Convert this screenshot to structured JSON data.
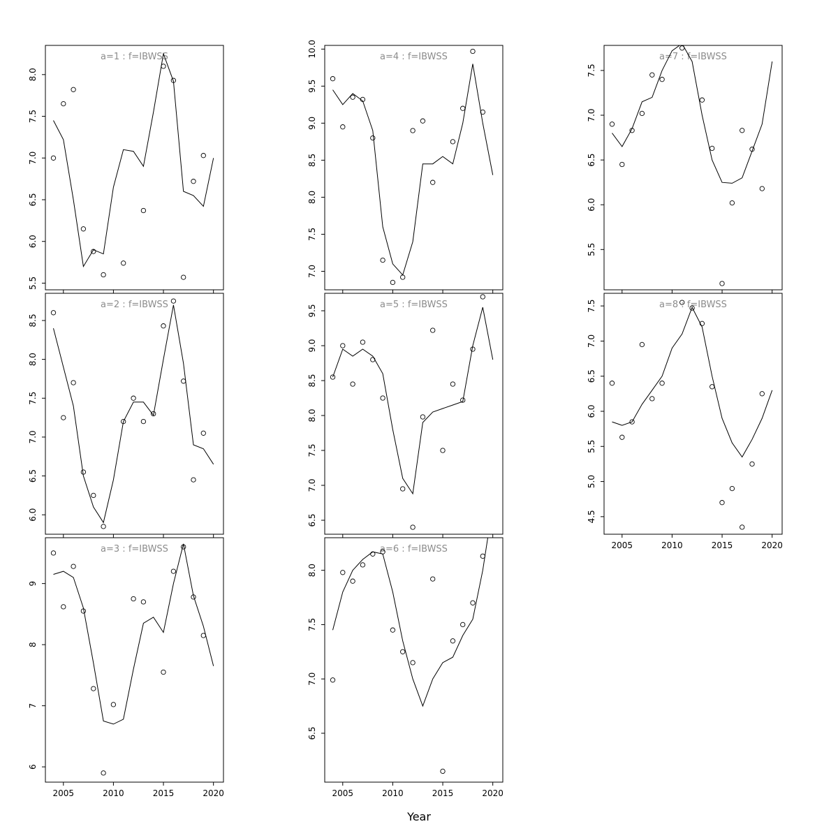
{
  "figure_title": "",
  "colors": {
    "line": "#000000",
    "point": "#000000",
    "panel_title": "#8c8c8c",
    "box": "#000000",
    "tick_text": "#000000"
  },
  "chart_data": {
    "type": "line",
    "subtype": "small-multiples scatter with fitted line",
    "xlabel": "Year",
    "x": [
      2004,
      2005,
      2006,
      2007,
      2008,
      2009,
      2010,
      2011,
      2012,
      2013,
      2014,
      2015,
      2016,
      2017,
      2018,
      2019,
      2020
    ],
    "xticks": [
      2005,
      2010,
      2015,
      2020
    ],
    "xlim": [
      2003.2,
      2021.0
    ],
    "grid": false,
    "legend": "none",
    "panels": [
      {
        "id": "a1",
        "title": "a=1  :  f=IBWSS",
        "row": 0,
        "col": 0,
        "ylim": [
          5.42,
          8.35
        ],
        "yticks": [
          5.5,
          6.0,
          6.5,
          7.0,
          7.5,
          8.0
        ],
        "show_xticklabels": false,
        "points": [
          7.0,
          7.65,
          7.82,
          6.15,
          5.88,
          5.6,
          null,
          5.74,
          null,
          6.37,
          null,
          8.1,
          7.93,
          5.57,
          6.72,
          7.03,
          null
        ],
        "line": [
          7.45,
          7.22,
          6.5,
          5.7,
          5.9,
          5.85,
          6.65,
          7.1,
          7.08,
          6.9,
          7.55,
          8.25,
          7.92,
          6.6,
          6.55,
          6.42,
          7.0
        ]
      },
      {
        "id": "a2",
        "title": "a=2  :  f=IBWSS",
        "row": 1,
        "col": 0,
        "ylim": [
          5.75,
          8.85
        ],
        "yticks": [
          6.0,
          6.5,
          7.0,
          7.5,
          8.0,
          8.5
        ],
        "show_xticklabels": false,
        "points": [
          8.6,
          7.25,
          7.7,
          6.55,
          6.25,
          5.85,
          null,
          7.2,
          7.5,
          7.2,
          7.3,
          8.43,
          8.75,
          7.72,
          6.45,
          7.05,
          null
        ],
        "line": [
          8.4,
          7.9,
          7.4,
          6.5,
          6.1,
          5.9,
          6.45,
          7.2,
          7.45,
          7.45,
          7.28,
          8.0,
          8.7,
          7.95,
          6.9,
          6.85,
          6.65
        ]
      },
      {
        "id": "a3",
        "title": "a=3  :  f=IBWSS",
        "row": 2,
        "col": 0,
        "ylim": [
          5.75,
          9.75
        ],
        "yticks": [
          6,
          7,
          8,
          9
        ],
        "show_xticklabels": true,
        "points": [
          9.5,
          8.62,
          9.28,
          8.55,
          7.28,
          5.9,
          7.02,
          null,
          8.75,
          8.7,
          null,
          7.55,
          9.2,
          9.6,
          8.78,
          8.15,
          null
        ],
        "line": [
          9.15,
          9.2,
          9.1,
          8.6,
          7.7,
          6.75,
          6.7,
          6.78,
          7.6,
          8.35,
          8.45,
          8.2,
          9.0,
          9.65,
          8.8,
          8.3,
          7.65
        ]
      },
      {
        "id": "a4",
        "title": "a=4  :  f=IBWSS",
        "row": 0,
        "col": 1,
        "ylim": [
          6.75,
          10.05
        ],
        "yticks": [
          7.0,
          7.5,
          8.0,
          8.5,
          9.0,
          9.5,
          10.0
        ],
        "show_xticklabels": false,
        "points": [
          9.6,
          8.95,
          9.35,
          9.32,
          8.8,
          7.15,
          6.85,
          6.92,
          8.9,
          9.03,
          8.2,
          null,
          8.75,
          9.2,
          9.97,
          9.15,
          null
        ],
        "line": [
          9.45,
          9.25,
          9.4,
          9.3,
          8.9,
          7.6,
          7.1,
          6.95,
          7.4,
          8.45,
          8.45,
          8.55,
          8.45,
          9.0,
          9.8,
          9.0,
          8.3
        ]
      },
      {
        "id": "a5",
        "title": "a=5  :  f=IBWSS",
        "row": 1,
        "col": 1,
        "ylim": [
          6.3,
          9.75
        ],
        "yticks": [
          6.5,
          7.0,
          7.5,
          8.0,
          8.5,
          9.0,
          9.5
        ],
        "show_xticklabels": false,
        "points": [
          8.55,
          9.0,
          8.45,
          9.05,
          8.8,
          8.25,
          null,
          6.95,
          6.4,
          7.98,
          9.22,
          7.5,
          8.45,
          8.22,
          8.95,
          9.7,
          null
        ],
        "line": [
          8.55,
          8.95,
          8.85,
          8.95,
          8.85,
          8.6,
          7.8,
          7.1,
          6.88,
          7.9,
          8.05,
          8.1,
          8.15,
          8.2,
          9.0,
          9.55,
          8.8
        ]
      },
      {
        "id": "a6",
        "title": "a=6  :  f=IBWSS",
        "row": 2,
        "col": 1,
        "ylim": [
          6.05,
          8.3
        ],
        "yticks": [
          6.5,
          7.0,
          7.5,
          8.0
        ],
        "show_xticklabels": true,
        "points": [
          6.99,
          7.98,
          7.9,
          8.05,
          8.15,
          8.17,
          7.45,
          7.25,
          7.15,
          null,
          7.92,
          6.15,
          7.35,
          7.5,
          7.7,
          8.13,
          null
        ],
        "line": [
          7.45,
          7.8,
          8.0,
          8.1,
          8.17,
          8.15,
          7.8,
          7.35,
          7.0,
          6.75,
          7.0,
          7.15,
          7.2,
          7.4,
          7.55,
          8.0,
          8.6
        ]
      },
      {
        "id": "a7",
        "title": "a=7  :  f=IBWSS",
        "row": 0,
        "col": 2,
        "ylim": [
          5.05,
          7.78
        ],
        "yticks": [
          5.5,
          6.0,
          6.5,
          7.0,
          7.5
        ],
        "show_xticklabels": false,
        "points": [
          6.9,
          6.45,
          6.83,
          7.02,
          7.45,
          7.4,
          null,
          7.75,
          null,
          7.17,
          6.63,
          5.12,
          6.02,
          6.83,
          6.62,
          6.18,
          null
        ],
        "line": [
          6.8,
          6.65,
          6.85,
          7.15,
          7.2,
          7.5,
          7.72,
          7.8,
          7.6,
          7.0,
          6.5,
          6.25,
          6.24,
          6.3,
          6.6,
          6.9,
          7.6
        ]
      },
      {
        "id": "a8",
        "title": "a=8  :  f=IBWSS",
        "row": 1,
        "col": 2,
        "ylim": [
          4.25,
          7.68
        ],
        "yticks": [
          4.5,
          5.0,
          5.5,
          6.0,
          6.5,
          7.0,
          7.5
        ],
        "show_xticklabels": true,
        "points": [
          6.4,
          5.63,
          5.85,
          6.95,
          6.18,
          6.4,
          null,
          7.55,
          7.47,
          7.25,
          6.35,
          4.7,
          4.9,
          4.35,
          5.25,
          6.25,
          null
        ],
        "line": [
          5.85,
          5.8,
          5.85,
          6.1,
          6.3,
          6.5,
          6.9,
          7.1,
          7.48,
          7.2,
          6.5,
          5.9,
          5.55,
          5.35,
          5.6,
          5.9,
          6.3
        ]
      }
    ]
  }
}
